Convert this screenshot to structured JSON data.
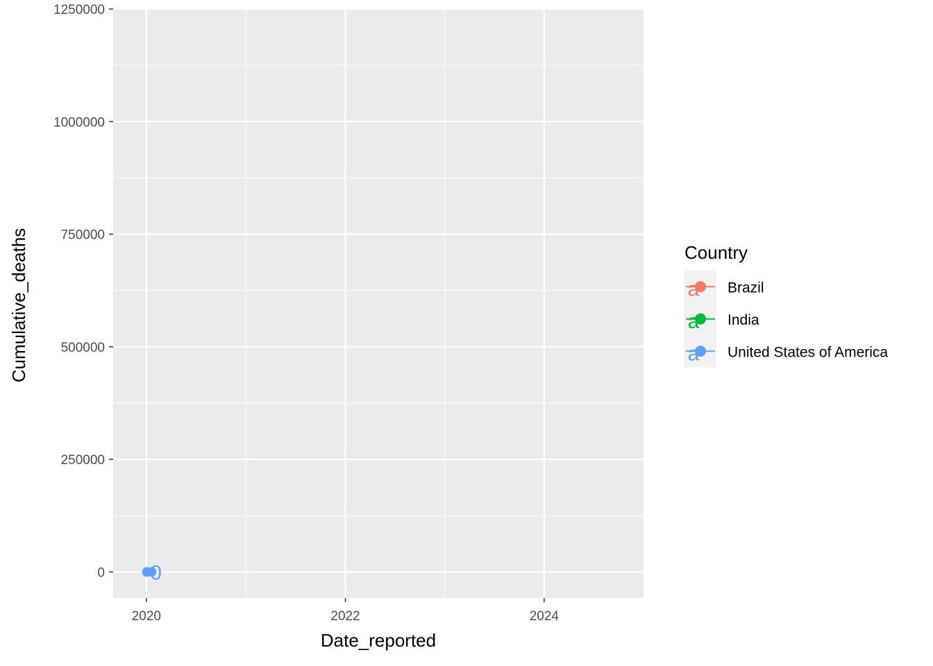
{
  "chart_data": {
    "type": "line",
    "xlabel": "Date_reported",
    "ylabel": "Cumulative_deaths",
    "x_ticks": [
      "2020",
      "2022",
      "2024"
    ],
    "y_ticks": [
      "0",
      "250000",
      "500000",
      "750000",
      "1000000",
      "1250000"
    ],
    "xlim": [
      "2019-09-01",
      "2024-12-31"
    ],
    "ylim": [
      -58000,
      1250000
    ],
    "grid": true,
    "legend": {
      "title": "Country",
      "position": "right",
      "glyph_text": "a"
    },
    "series": [
      {
        "name": "Brazil",
        "color": "#F8766D",
        "points": []
      },
      {
        "name": "India",
        "color": "#00BA38",
        "points": []
      },
      {
        "name": "United States of America",
        "color": "#619CFF",
        "points": [
          {
            "x": "2020-01-03",
            "y": 0
          },
          {
            "x": "2020-01-20",
            "y": 0
          }
        ]
      }
    ],
    "annotations": [
      {
        "series": "United States of America",
        "x": "2020-02-05",
        "y": 0,
        "text": "0"
      }
    ]
  }
}
